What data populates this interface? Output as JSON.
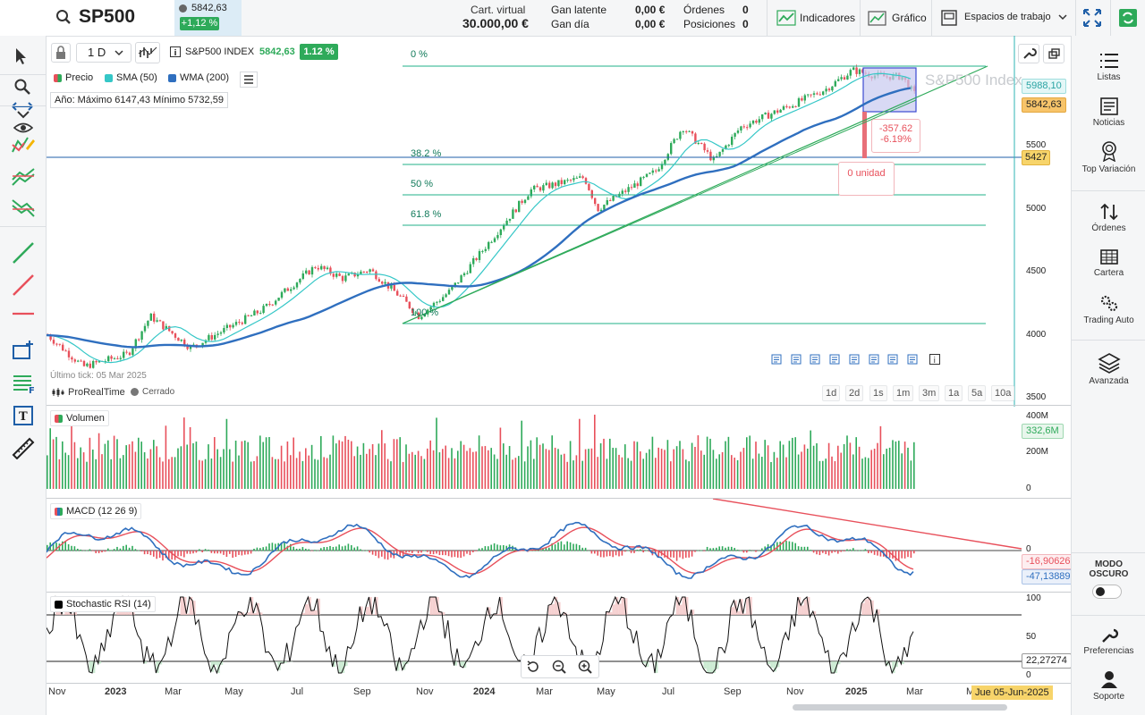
{
  "header": {
    "symbol": "SP500",
    "price": "5842,63",
    "change": "+1,12 %",
    "virtual_label": "Cart. virtual",
    "virtual_value": "30.000,00 €",
    "latent_label": "Gan latente",
    "latent_value": "0,00 €",
    "day_label": "Gan día",
    "day_value": "0,00 €",
    "orders_label": "Órdenes",
    "orders_value": "0",
    "positions_label": "Posiciones",
    "positions_value": "0",
    "indicators_label": "Indicadores",
    "chart_label": "Gráfico",
    "workspaces_label": "Espacios de trabajo"
  },
  "chart_toolbar": {
    "timeframe": "1 D",
    "instrument": "S&P500 INDEX",
    "instrument_price": "5842,63",
    "instrument_change": "1.12 %",
    "watermark": "S&P500 Index"
  },
  "legend": {
    "price": "Precio",
    "sma": "SMA (50)",
    "wma": "WMA (200)",
    "year_range": "Año: Máximo 6147,43 Mínimo 5732,59",
    "last_tick": "Último tick: 05 Mar 2025",
    "provider": "ProRealTime",
    "status": "Cerrado"
  },
  "fibonacci": [
    "0 %",
    "38.2 %",
    "50 %",
    "61.8 %",
    "100 %"
  ],
  "measure": {
    "points": "-357.62",
    "percent": "-6.19%",
    "units": "0 unidad"
  },
  "price_axis": [
    "5500",
    "5000",
    "4500",
    "4000",
    "3500"
  ],
  "price_tags": {
    "sma": "5988,10",
    "last": "5842,63",
    "cursor": "5427"
  },
  "periods": [
    "1d",
    "2d",
    "1s",
    "1m",
    "3m",
    "1a",
    "5a",
    "10a"
  ],
  "volume": {
    "label": "Volumen",
    "axis": [
      "400M",
      "200M",
      "0"
    ],
    "last": "332,6M"
  },
  "macd": {
    "label": "MACD (12 26 9)",
    "zero": "0",
    "v1": "-16,90626",
    "v2": "-47,13889"
  },
  "stoch": {
    "label": "Stochastic RSI (14)",
    "axis": [
      "100",
      "50",
      "0"
    ],
    "last": "22,27274"
  },
  "x_axis": [
    "Nov",
    "2023",
    "Mar",
    "May",
    "Jul",
    "Sep",
    "Nov",
    "2024",
    "Mar",
    "May",
    "Jul",
    "Sep",
    "Nov",
    "2025",
    "Mar",
    "M"
  ],
  "date_cursor": "Jue 05-Jun-2025",
  "right_panel": {
    "lists": "Listas",
    "news": "Noticias",
    "top": "Top Variación",
    "orders": "Órdenes",
    "portfolio": "Cartera",
    "auto": "Trading Auto",
    "advanced": "Avanzada",
    "dark_mode": "MODO OSCURO",
    "prefs": "Preferencias",
    "support": "Soporte"
  },
  "colors": {
    "accent_green": "#2eaa5a",
    "fib_line": "#20b08a",
    "sma": "#35c7c7",
    "wma": "#2f6fbf",
    "trend_red": "#e8505b"
  }
}
